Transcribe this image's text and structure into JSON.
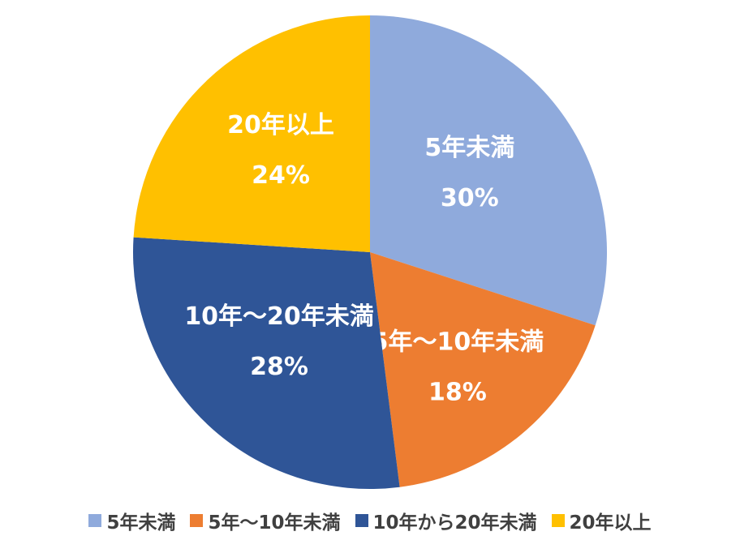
{
  "chart_data": {
    "type": "pie",
    "title": "",
    "start_angle_deg": 0,
    "direction": "clockwise",
    "legend_position": "bottom",
    "slices": [
      {
        "label": "5年未満",
        "value": 30,
        "value_label": "30%",
        "color": "#8FAADC"
      },
      {
        "label": "5年～10年未満",
        "value": 18,
        "value_label": "18%",
        "color": "#ED7D31"
      },
      {
        "label": "10年～20年未満",
        "value": 28,
        "value_label": "28%",
        "color": "#2F5597"
      },
      {
        "label": "20年以上",
        "value": 24,
        "value_label": "24%",
        "color": "#FFC000"
      }
    ],
    "legend": [
      {
        "label": "5年未満",
        "color": "#8FAADC"
      },
      {
        "label": "5年～10年未満",
        "color": "#ED7D31"
      },
      {
        "label": "10年から20年未満",
        "color": "#2F5597"
      },
      {
        "label": "20年以上",
        "color": "#FFC000"
      }
    ]
  }
}
